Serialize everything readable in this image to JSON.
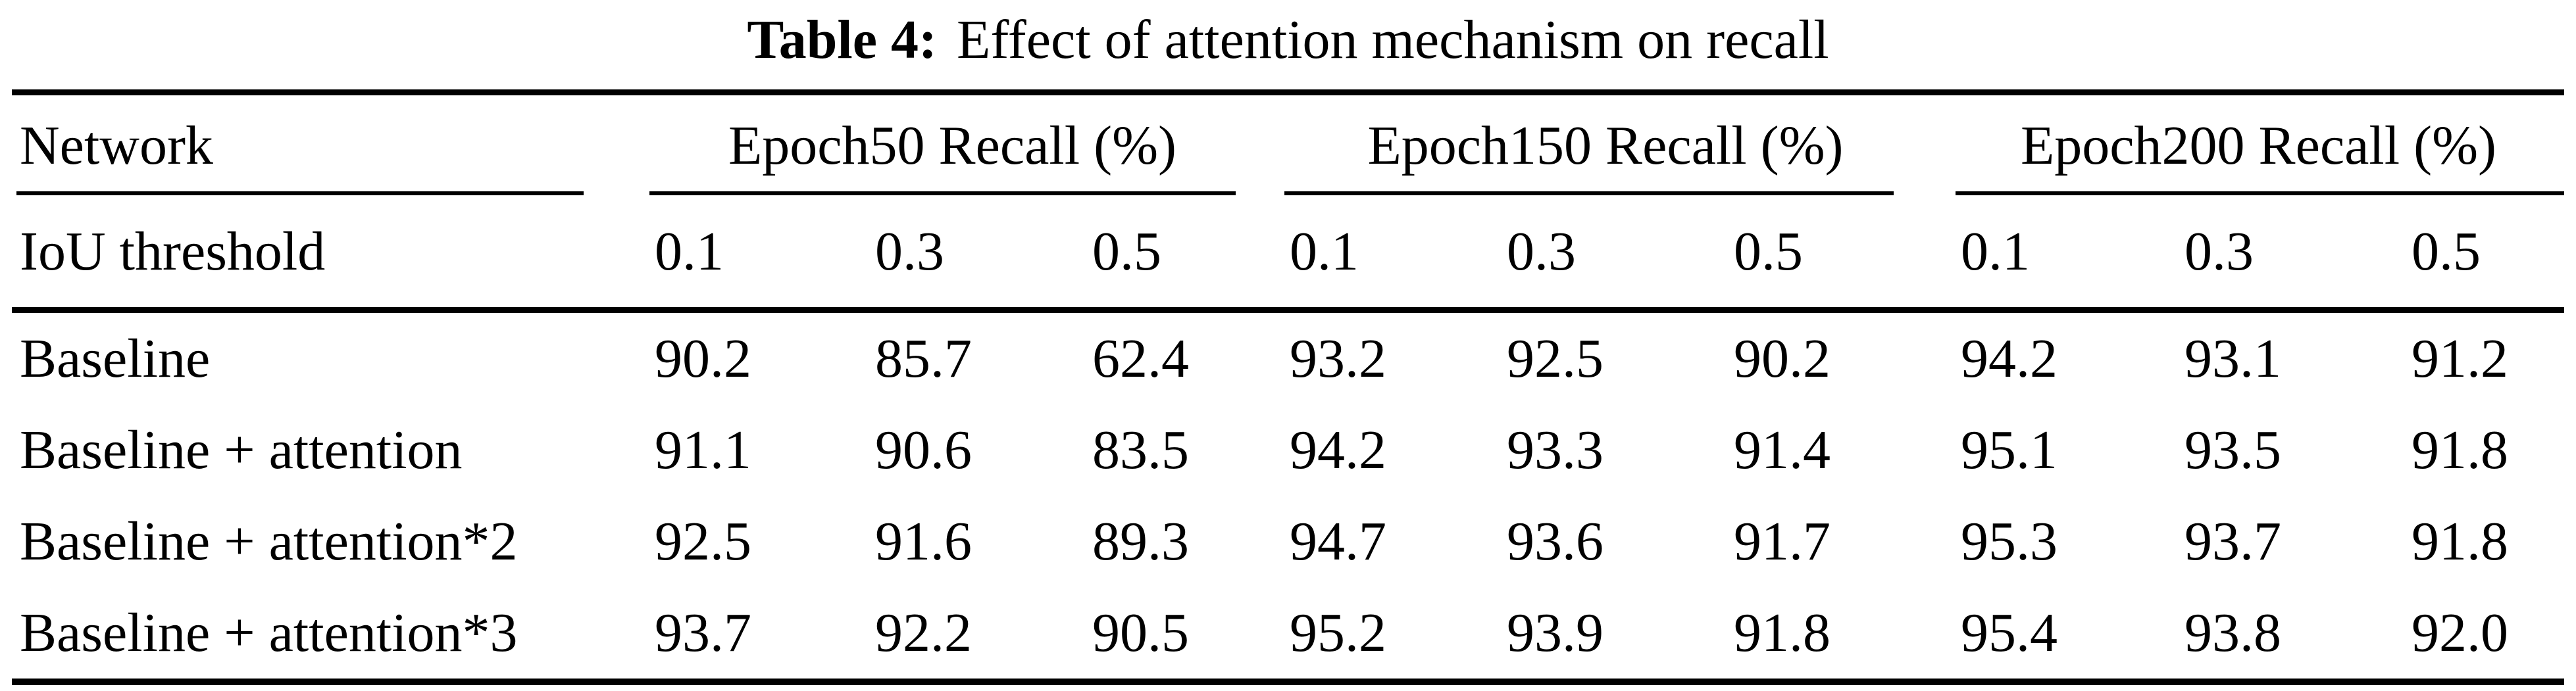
{
  "caption": {
    "label": "Table 4:",
    "text": "Effect of attention mechanism on recall"
  },
  "table": {
    "col1_header": "Network",
    "row2_header": "IoU threshold",
    "groups": [
      {
        "label": "Epoch50 Recall (%)",
        "thresholds": [
          "0.1",
          "0.3",
          "0.5"
        ]
      },
      {
        "label": "Epoch150 Recall (%)",
        "thresholds": [
          "0.1",
          "0.3",
          "0.5"
        ]
      },
      {
        "label": "Epoch200 Recall (%)",
        "thresholds": [
          "0.1",
          "0.3",
          "0.5"
        ]
      }
    ],
    "rows": [
      {
        "network": "Baseline",
        "values": [
          "90.2",
          "85.7",
          "62.4",
          "93.2",
          "92.5",
          "90.2",
          "94.2",
          "93.1",
          "91.2"
        ]
      },
      {
        "network": "Baseline + attention",
        "values": [
          "91.1",
          "90.6",
          "83.5",
          "94.2",
          "93.3",
          "91.4",
          "95.1",
          "93.5",
          "91.8"
        ]
      },
      {
        "network": "Baseline + attention*2",
        "values": [
          "92.5",
          "91.6",
          "89.3",
          "94.7",
          "93.6",
          "91.7",
          "95.3",
          "93.7",
          "91.8"
        ]
      },
      {
        "network": "Baseline + attention*3",
        "values": [
          "93.7",
          "92.2",
          "90.5",
          "95.2",
          "93.9",
          "91.8",
          "95.4",
          "93.8",
          "92.0"
        ]
      }
    ]
  }
}
